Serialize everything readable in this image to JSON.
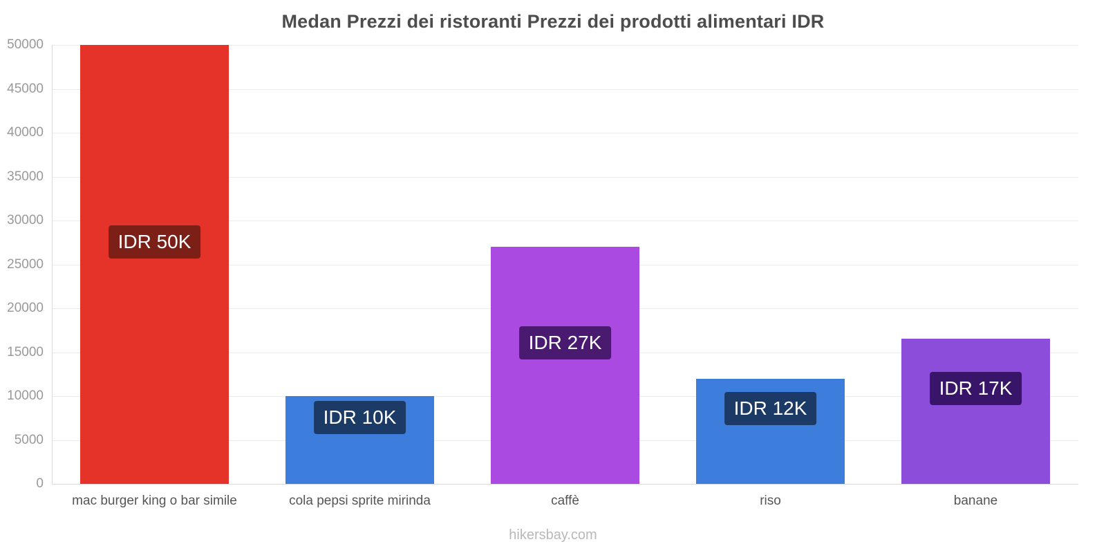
{
  "title": "Medan Prezzi dei ristoranti Prezzi dei prodotti alimentari IDR",
  "footer": {
    "text": "hikersbay.com"
  },
  "chart_data": {
    "type": "bar",
    "title": "Medan Prezzi dei ristoranti Prezzi dei prodotti alimentari IDR",
    "categories": [
      "mac burger king o bar simile",
      "cola pepsi sprite mirinda",
      "caffè",
      "riso",
      "banane"
    ],
    "values": [
      50000,
      10000,
      27000,
      12000,
      16500
    ],
    "value_labels": [
      "IDR 50K",
      "IDR 10K",
      "IDR 27K",
      "IDR 12K",
      "IDR 17K"
    ],
    "bar_colors": [
      "#e6332a",
      "#3d7edd",
      "#ab4ae0",
      "#3d7edd",
      "#8d4ddb"
    ],
    "label_colors": [
      "#7c1f16",
      "#1c3a66",
      "#4a1a70",
      "#1c3a66",
      "#391569"
    ],
    "xlabel": "",
    "ylabel": "",
    "ylim": [
      0,
      50000
    ],
    "yticks": [
      0,
      5000,
      10000,
      15000,
      20000,
      25000,
      30000,
      35000,
      40000,
      45000,
      50000
    ],
    "grid": true,
    "legend": "none"
  }
}
